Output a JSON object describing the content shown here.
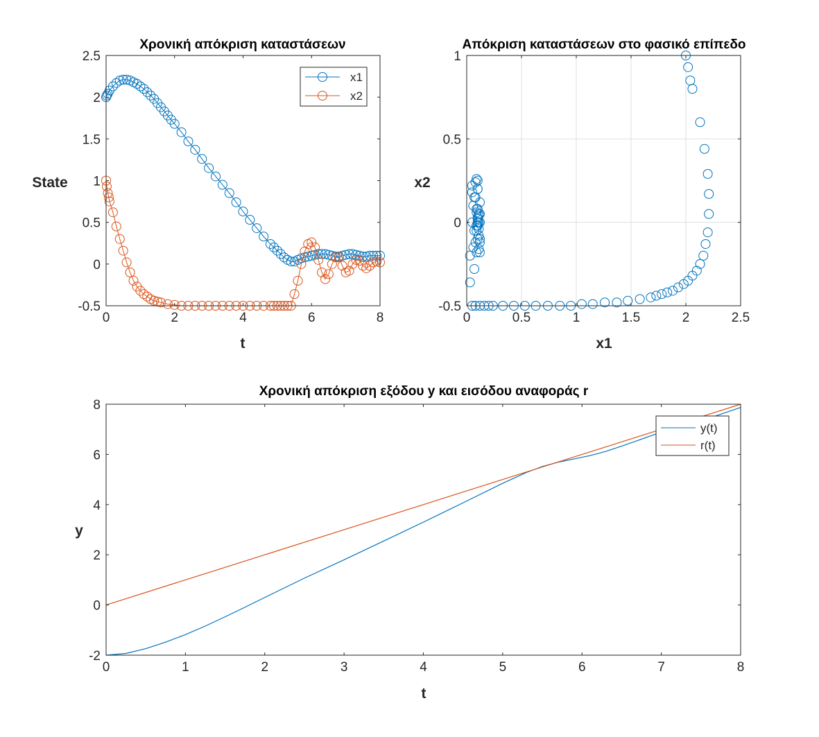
{
  "window": {
    "title": ""
  },
  "colors": {
    "blue": "#0072BD",
    "orange": "#D95319",
    "axis": "#262626",
    "grid": "#DFDFDF"
  },
  "chart_data": [
    {
      "type": "scatter",
      "title": "Χρονική απόκριση καταστάσεων",
      "xlabel": "t",
      "ylabel": "State",
      "xlim": [
        0,
        8
      ],
      "ylim": [
        -0.5,
        2.5
      ],
      "xticks": [
        0,
        2,
        4,
        6,
        8
      ],
      "yticks": [
        -0.5,
        0,
        0.5,
        1,
        1.5,
        2,
        2.5
      ],
      "xtick_labels": [
        "0",
        "2",
        "4",
        "6",
        "8"
      ],
      "ytick_labels": [
        "-0.5",
        "0",
        "0.5",
        "1",
        "1.5",
        "2",
        "2.5"
      ],
      "grid": false,
      "legend_position": "top-right",
      "marker": "circle",
      "series": [
        {
          "name": "x1",
          "color": "#0072BD",
          "t": [
            0,
            0.02,
            0.05,
            0.1,
            0.2,
            0.3,
            0.4,
            0.5,
            0.6,
            0.7,
            0.8,
            0.9,
            1.0,
            1.1,
            1.2,
            1.3,
            1.4,
            1.5,
            1.6,
            1.7,
            1.8,
            1.9,
            2.0,
            2.2,
            2.4,
            2.6,
            2.8,
            3.0,
            3.2,
            3.4,
            3.6,
            3.8,
            4.0,
            4.2,
            4.4,
            4.6,
            4.8,
            4.9,
            5.0,
            5.1,
            5.2,
            5.3,
            5.4,
            5.5,
            5.6,
            5.7,
            5.8,
            5.9,
            6.0,
            6.1,
            6.2,
            6.3,
            6.4,
            6.5,
            6.6,
            6.7,
            6.8,
            6.9,
            7.0,
            7.1,
            7.2,
            7.3,
            7.4,
            7.5,
            7.6,
            7.7,
            7.8,
            7.9,
            8.0
          ],
          "values": [
            2.0,
            2.02,
            2.04,
            2.08,
            2.13,
            2.17,
            2.2,
            2.21,
            2.21,
            2.2,
            2.18,
            2.16,
            2.13,
            2.1,
            2.06,
            2.02,
            1.98,
            1.93,
            1.88,
            1.83,
            1.78,
            1.73,
            1.68,
            1.58,
            1.47,
            1.37,
            1.26,
            1.15,
            1.05,
            0.95,
            0.85,
            0.74,
            0.63,
            0.53,
            0.43,
            0.33,
            0.24,
            0.2,
            0.16,
            0.12,
            0.08,
            0.05,
            0.03,
            0.03,
            0.05,
            0.07,
            0.08,
            0.09,
            0.1,
            0.11,
            0.12,
            0.12,
            0.12,
            0.11,
            0.1,
            0.09,
            0.09,
            0.1,
            0.11,
            0.12,
            0.12,
            0.11,
            0.1,
            0.09,
            0.09,
            0.1,
            0.1,
            0.1,
            0.1
          ]
        },
        {
          "name": "x2",
          "color": "#D95319",
          "t": [
            0,
            0.02,
            0.05,
            0.08,
            0.1,
            0.2,
            0.3,
            0.4,
            0.5,
            0.6,
            0.7,
            0.8,
            0.9,
            1.0,
            1.1,
            1.2,
            1.3,
            1.4,
            1.5,
            1.6,
            1.8,
            2.0,
            2.2,
            2.4,
            2.6,
            2.8,
            3.0,
            3.2,
            3.4,
            3.6,
            3.8,
            4.0,
            4.2,
            4.4,
            4.6,
            4.8,
            4.9,
            5.0,
            5.1,
            5.2,
            5.3,
            5.4,
            5.5,
            5.6,
            5.7,
            5.8,
            5.9,
            6.0,
            6.1,
            6.2,
            6.3,
            6.4,
            6.5,
            6.6,
            6.7,
            6.8,
            6.9,
            7.0,
            7.1,
            7.2,
            7.3,
            7.4,
            7.5,
            7.6,
            7.7,
            7.8,
            7.9,
            8.0
          ],
          "values": [
            1.0,
            0.93,
            0.85,
            0.8,
            0.75,
            0.62,
            0.45,
            0.3,
            0.16,
            0.02,
            -0.1,
            -0.2,
            -0.27,
            -0.32,
            -0.36,
            -0.39,
            -0.42,
            -0.44,
            -0.45,
            -0.46,
            -0.48,
            -0.49,
            -0.5,
            -0.5,
            -0.5,
            -0.5,
            -0.5,
            -0.5,
            -0.5,
            -0.5,
            -0.5,
            -0.5,
            -0.5,
            -0.5,
            -0.5,
            -0.5,
            -0.5,
            -0.5,
            -0.5,
            -0.5,
            -0.5,
            -0.5,
            -0.36,
            -0.2,
            0.0,
            0.15,
            0.24,
            0.26,
            0.2,
            0.05,
            -0.1,
            -0.18,
            -0.12,
            0.0,
            0.08,
            0.08,
            -0.02,
            -0.1,
            -0.08,
            0.0,
            0.05,
            0.04,
            -0.02,
            -0.05,
            -0.02,
            0.02,
            0.03,
            0.02
          ]
        }
      ]
    },
    {
      "type": "scatter",
      "title": "Απόκριση καταστάσεων στο φασικό επίπεδο",
      "xlabel": "x1",
      "ylabel": "x2",
      "xlim": [
        0,
        2.5
      ],
      "ylim": [
        -0.5,
        1
      ],
      "xticks": [
        0,
        0.5,
        1,
        1.5,
        2,
        2.5
      ],
      "yticks": [
        -0.5,
        0,
        0.5,
        1
      ],
      "xtick_labels": [
        "0",
        "0.5",
        "1",
        "1.5",
        "2",
        "2.5"
      ],
      "ytick_labels": [
        "-0.5",
        "0",
        "0.5",
        "1"
      ],
      "grid": true,
      "marker": "circle",
      "series": [
        {
          "color": "#0072BD",
          "x": [
            2.0,
            2.02,
            2.04,
            2.06,
            2.13,
            2.17,
            2.2,
            2.21,
            2.21,
            2.2,
            2.18,
            2.16,
            2.13,
            2.1,
            2.06,
            2.02,
            1.98,
            1.93,
            1.88,
            1.83,
            1.78,
            1.73,
            1.68,
            1.58,
            1.47,
            1.37,
            1.26,
            1.15,
            1.05,
            0.95,
            0.85,
            0.74,
            0.63,
            0.53,
            0.43,
            0.33,
            0.24,
            0.2,
            0.16,
            0.12,
            0.08,
            0.05,
            0.03,
            0.03,
            0.05,
            0.07,
            0.08,
            0.09,
            0.1,
            0.11,
            0.12,
            0.12,
            0.12,
            0.11,
            0.1,
            0.09,
            0.09,
            0.1,
            0.11,
            0.12,
            0.12,
            0.11,
            0.1,
            0.09,
            0.09,
            0.1,
            0.1,
            0.1,
            0.1,
            0.05,
            0.06,
            0.07,
            0.06,
            0.05,
            0.1,
            0.11,
            0.12,
            0.09,
            0.08,
            0.1,
            0.11,
            0.09,
            0.08,
            0.07
          ],
          "y": [
            1.0,
            0.93,
            0.85,
            0.8,
            0.6,
            0.44,
            0.29,
            0.17,
            0.05,
            -0.06,
            -0.13,
            -0.2,
            -0.25,
            -0.29,
            -0.32,
            -0.35,
            -0.37,
            -0.39,
            -0.41,
            -0.42,
            -0.43,
            -0.44,
            -0.45,
            -0.46,
            -0.47,
            -0.48,
            -0.48,
            -0.49,
            -0.49,
            -0.5,
            -0.5,
            -0.5,
            -0.5,
            -0.5,
            -0.5,
            -0.5,
            -0.5,
            -0.5,
            -0.5,
            -0.5,
            -0.5,
            -0.5,
            -0.36,
            -0.2,
            0.0,
            0.15,
            0.24,
            0.26,
            0.2,
            0.05,
            -0.1,
            -0.18,
            -0.12,
            0.0,
            0.08,
            0.08,
            -0.02,
            -0.1,
            -0.08,
            0.0,
            0.05,
            0.04,
            -0.02,
            -0.05,
            -0.02,
            0.02,
            0.03,
            0.02,
            0.0,
            0.22,
            0.1,
            -0.05,
            -0.15,
            0.18,
            0.25,
            -0.16,
            0.12,
            0.06,
            -0.12,
            0.2,
            -0.04,
            -0.18,
            0.15,
            -0.28
          ]
        }
      ]
    },
    {
      "type": "line",
      "title": "Χρονική απόκριση εξόδου y και εισόδου αναφοράς r",
      "xlabel": "t",
      "ylabel": "y",
      "xlim": [
        0,
        8
      ],
      "ylim": [
        -2,
        8
      ],
      "xticks": [
        0,
        1,
        2,
        3,
        4,
        5,
        6,
        7,
        8
      ],
      "yticks": [
        -2,
        0,
        2,
        4,
        6,
        8
      ],
      "xtick_labels": [
        "0",
        "1",
        "2",
        "3",
        "4",
        "5",
        "6",
        "7",
        "8"
      ],
      "ytick_labels": [
        "-2",
        "0",
        "2",
        "4",
        "6",
        "8"
      ],
      "grid": false,
      "legend_position": "top-right",
      "series": [
        {
          "name": "y(t)",
          "color": "#0072BD",
          "t": [
            0,
            0.25,
            0.5,
            0.75,
            1.0,
            1.25,
            1.5,
            1.75,
            2.0,
            2.5,
            3.0,
            3.5,
            4.0,
            4.5,
            5.0,
            5.3,
            5.5,
            5.7,
            5.9,
            6.1,
            6.3,
            6.5,
            6.7,
            6.9,
            7.1,
            7.3,
            7.5,
            7.7,
            8.0
          ],
          "values": [
            -2.0,
            -1.93,
            -1.74,
            -1.48,
            -1.18,
            -0.84,
            -0.47,
            -0.09,
            0.3,
            1.07,
            1.8,
            2.55,
            3.3,
            4.07,
            4.85,
            5.28,
            5.52,
            5.69,
            5.82,
            5.95,
            6.12,
            6.33,
            6.55,
            6.78,
            6.97,
            7.15,
            7.35,
            7.55,
            7.87
          ]
        },
        {
          "name": "r(t)",
          "color": "#D95319",
          "t": [
            0,
            8
          ],
          "values": [
            0,
            8
          ]
        }
      ]
    }
  ]
}
